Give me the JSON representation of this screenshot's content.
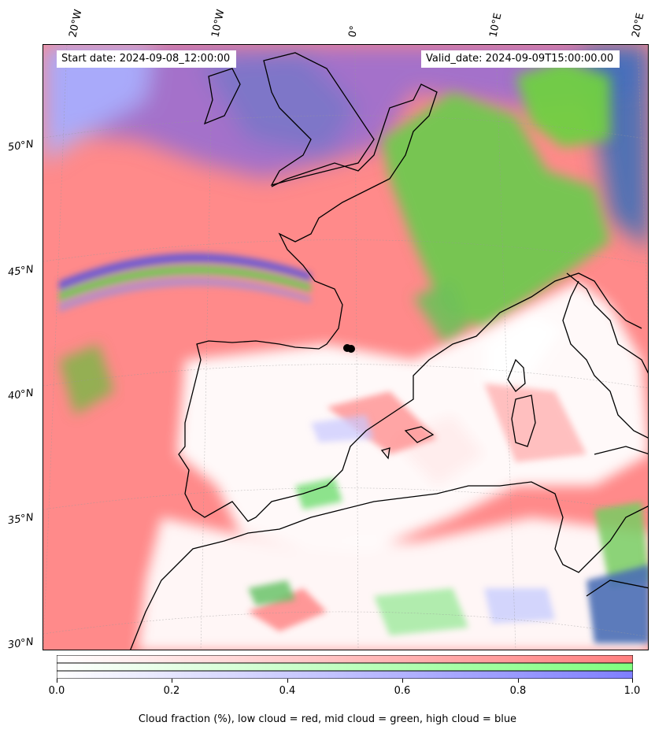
{
  "map": {
    "lon_labels": [
      "20°W",
      "10°W",
      "0°",
      "10°E",
      "20°E"
    ],
    "lat_labels": [
      "50°N",
      "45°N",
      "40°N",
      "35°N",
      "30°N"
    ],
    "start_date": "Start date: 2024-09-08_12:00:00",
    "valid_date": "Valid_date: 2024-09-09T15:00:00.00"
  },
  "colorbar": {
    "ticks": [
      "0.0",
      "0.2",
      "0.4",
      "0.6",
      "0.8",
      "1.0"
    ],
    "label": "Cloud fraction (%), low cloud = red, mid cloud = green, high cloud = blue",
    "colors": {
      "low": "#ff7f7f",
      "mid": "#7fff7f",
      "high": "#7f7fff"
    }
  }
}
